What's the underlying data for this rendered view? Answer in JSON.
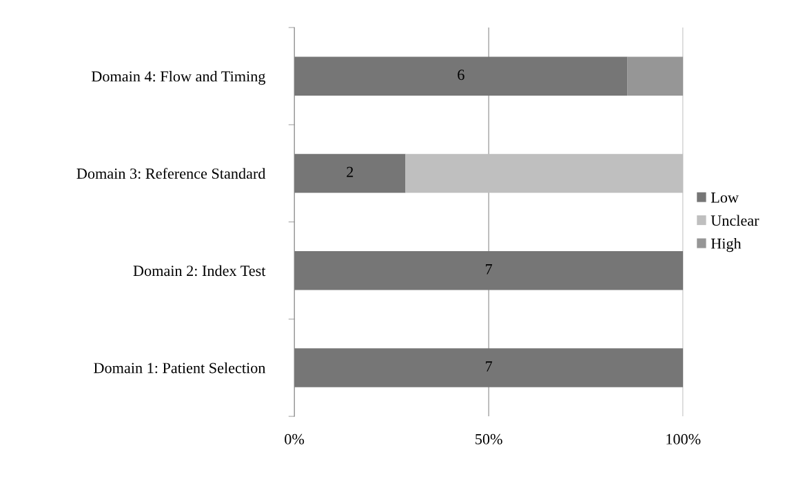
{
  "chart_data": {
    "type": "bar",
    "orientation": "horizontal",
    "stacked": true,
    "categories": [
      "Domain 4: Flow and Timing",
      "Domain 3: Reference Standard",
      "Domain 2: Index Test",
      "Domain 1: Patient Selection"
    ],
    "series": [
      {
        "name": "Low",
        "color": "#767676",
        "values": [
          85.7,
          28.6,
          100,
          100
        ]
      },
      {
        "name": "Unclear",
        "color": "#bfbfbf",
        "values": [
          0,
          71.4,
          0,
          0
        ]
      },
      {
        "name": "High",
        "color": "#969696",
        "values": [
          14.3,
          0,
          0,
          0
        ]
      }
    ],
    "xlim": [
      0,
      100
    ],
    "xticks": [
      {
        "value": 0,
        "label": "0%"
      },
      {
        "value": 50,
        "label": "50%"
      },
      {
        "value": 100,
        "label": "100%"
      }
    ],
    "annotations": [
      "6",
      "2",
      "7",
      "7"
    ],
    "grid": "x",
    "legend": "right"
  }
}
